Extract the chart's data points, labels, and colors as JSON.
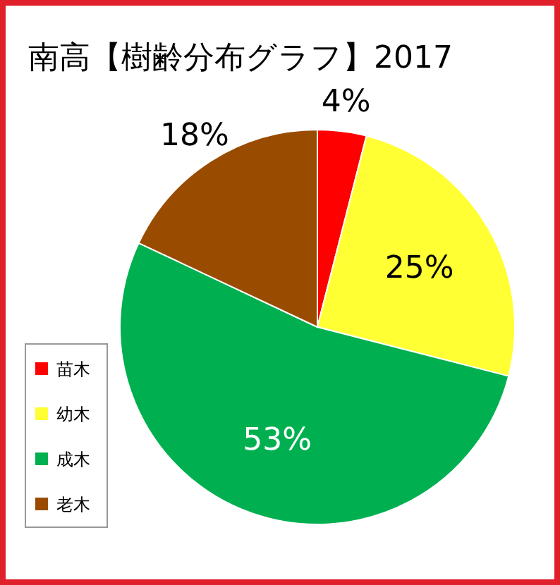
{
  "chart_data": {
    "type": "pie",
    "title": "南高【樹齢分布グラフ】2017",
    "categories": [
      "苗木",
      "幼木",
      "成木",
      "老木"
    ],
    "values": [
      4,
      25,
      53,
      18
    ],
    "colors": [
      "#ff0000",
      "#ffff33",
      "#00b050",
      "#994c00"
    ],
    "value_labels": [
      "4%",
      "25%",
      "53%",
      "18%"
    ],
    "legend": "bottom left"
  }
}
